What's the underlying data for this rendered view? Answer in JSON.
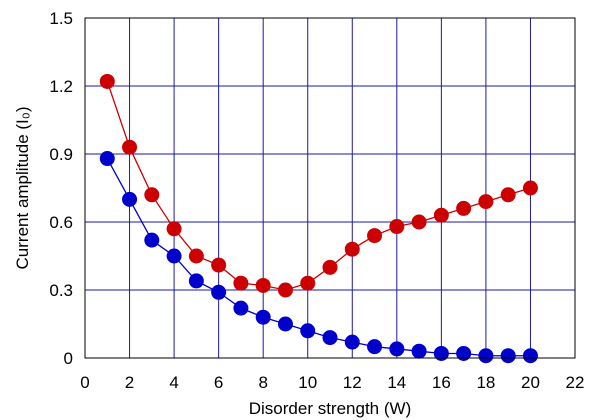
{
  "chart_data": {
    "type": "scatter",
    "xlabel": "Disorder strength (W)",
    "ylabel": "Current amplitude (I₀)",
    "xlim": [
      0,
      22
    ],
    "ylim": [
      0,
      1.5
    ],
    "x_ticks": [
      "0",
      "2",
      "4",
      "6",
      "8",
      "10",
      "12",
      "14",
      "16",
      "18",
      "20",
      "22"
    ],
    "y_ticks": [
      "0",
      "0.3",
      "0.6",
      "0.9",
      "1.2",
      "1.5"
    ],
    "grid": true,
    "series": [
      {
        "color": "#cc0000",
        "x": [
          1,
          2,
          3,
          4,
          5,
          6,
          7,
          8,
          9,
          10,
          11,
          12,
          13,
          14,
          15,
          16,
          17,
          18,
          19,
          20
        ],
        "y": [
          1.22,
          0.93,
          0.72,
          0.57,
          0.45,
          0.41,
          0.33,
          0.32,
          0.3,
          0.33,
          0.4,
          0.48,
          0.54,
          0.58,
          0.6,
          0.63,
          0.66,
          0.69,
          0.72,
          0.75
        ]
      },
      {
        "color": "#0000cc",
        "x": [
          1,
          2,
          3,
          4,
          5,
          6,
          7,
          8,
          9,
          10,
          11,
          12,
          13,
          14,
          15,
          16,
          17,
          18,
          19,
          20
        ],
        "y": [
          0.88,
          0.7,
          0.52,
          0.45,
          0.34,
          0.29,
          0.22,
          0.18,
          0.15,
          0.12,
          0.09,
          0.07,
          0.05,
          0.04,
          0.03,
          0.02,
          0.02,
          0.01,
          0.01,
          0.01
        ]
      }
    ]
  }
}
